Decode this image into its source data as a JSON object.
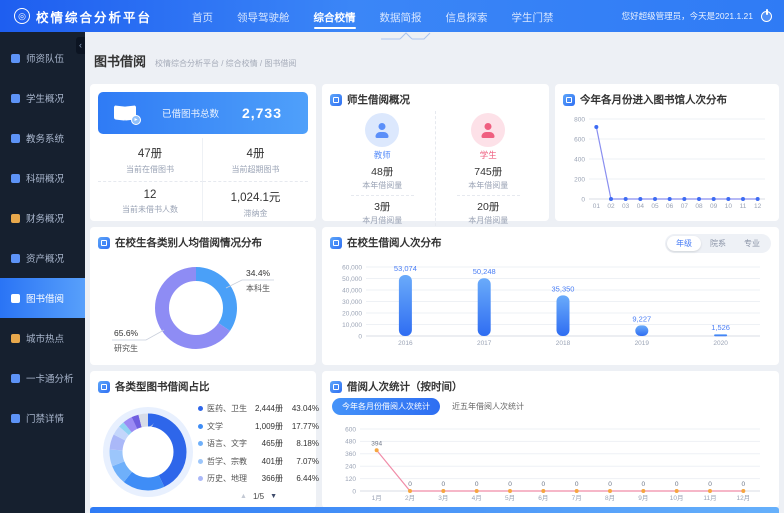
{
  "topbar": {
    "logo_text": "校情综合分析平台",
    "nav": [
      {
        "label": "首页"
      },
      {
        "label": "领导驾驶舱"
      },
      {
        "label": "综合校情"
      },
      {
        "label": "数据简报"
      },
      {
        "label": "信息探索"
      },
      {
        "label": "学生门禁"
      }
    ],
    "active_nav": "综合校情",
    "greeting": "您好超级管理员，今天是2021.1.21"
  },
  "sidebar": {
    "active": "图书借阅",
    "items": [
      {
        "label": "师资队伍"
      },
      {
        "label": "学生概况"
      },
      {
        "label": "教务系统"
      },
      {
        "label": "科研概况"
      },
      {
        "label": "财务概况"
      },
      {
        "label": "资产概况"
      },
      {
        "label": "图书借阅"
      },
      {
        "label": "城市热点"
      },
      {
        "label": "一卡通分析"
      },
      {
        "label": "门禁详情"
      }
    ]
  },
  "breadcrumb": {
    "title": "图书借阅",
    "path": "校情综合分析平台 / 综合校情 / 图书借阅"
  },
  "cards": {
    "borrow_summary": {
      "banner": {
        "label": "已借图书总数",
        "value": "2,733"
      },
      "stats": [
        {
          "value": "47册",
          "label": "当前在借图书"
        },
        {
          "value": "4册",
          "label": "当前超期图书"
        },
        {
          "value": "12",
          "label": "当前未借书人数"
        },
        {
          "value": "1,024.1元",
          "label": "滞纳金"
        }
      ]
    },
    "teacher_student": {
      "title": "师生借阅概况",
      "teacher": {
        "name": "教师",
        "year_value": "48册",
        "year_label": "本年借阅量",
        "month_value": "3册",
        "month_label": "本月借阅量"
      },
      "student": {
        "name": "学生",
        "year_value": "745册",
        "year_label": "本年借阅量",
        "month_value": "20册",
        "month_label": "本月借阅量"
      }
    },
    "monthly_entries": {
      "title": "今年各月份进入图书馆人次分布"
    },
    "per_capita": {
      "title": "在校生各类别人均借阅情况分布"
    },
    "yearly_borrow": {
      "title": "在校生借阅人次分布",
      "tabs": [
        {
          "label": "年级"
        },
        {
          "label": "院系"
        },
        {
          "label": "专业"
        }
      ],
      "active_tab": "年级"
    },
    "book_types": {
      "title": "各类型图书借阅占比",
      "pagination": "1/5",
      "legend": [
        {
          "name": "医药、卫生",
          "count": "2,444册",
          "pct": "43.04%"
        },
        {
          "name": "文学",
          "count": "1,009册",
          "pct": "17.77%"
        },
        {
          "name": "语言、文字",
          "count": "465册",
          "pct": "8.18%"
        },
        {
          "name": "哲学、宗教",
          "count": "401册",
          "pct": "7.07%"
        },
        {
          "name": "历史、地理",
          "count": "366册",
          "pct": "6.44%"
        }
      ]
    },
    "time_stats": {
      "title": "借阅人次统计（按时间）",
      "buttons": [
        {
          "label": "今年各月份借阅人次统计",
          "active": true
        },
        {
          "label": "近五年借阅人次统计",
          "active": false
        }
      ]
    }
  },
  "chart_data": [
    {
      "id": "monthly_entries",
      "type": "line",
      "title": "今年各月份进入图书馆人次分布",
      "x": [
        "01",
        "02",
        "03",
        "04",
        "05",
        "06",
        "07",
        "08",
        "09",
        "10",
        "11",
        "12"
      ],
      "values": [
        720,
        0,
        0,
        0,
        0,
        0,
        0,
        0,
        0,
        0,
        0,
        0
      ],
      "ylim": [
        0,
        800
      ],
      "ystep": 200,
      "grid": true,
      "color": "#8a8ff0",
      "point_color": "#3d6bf3"
    },
    {
      "id": "yearly_borrow",
      "type": "bar",
      "title": "在校生借阅人次分布",
      "categories": [
        "2016",
        "2017",
        "2018",
        "2019",
        "2020"
      ],
      "values": [
        53074,
        50248,
        35350,
        9227,
        1526
      ],
      "ylim": [
        0,
        60000
      ],
      "ystep": 10000,
      "grid": true,
      "bar_color_top": "#6aabfa",
      "bar_color_bottom": "#2f6df2",
      "label_color": "#4a7ef5",
      "tabs": [
        "年级",
        "院系",
        "专业"
      ],
      "active_tab": "年级"
    },
    {
      "id": "per_capita",
      "type": "pie",
      "title": "在校生各类别人均借阅情况分布",
      "slices": [
        {
          "label": "本科生",
          "pct": 34.4,
          "color": "#4aa0f8"
        },
        {
          "label": "研究生",
          "pct": 65.6,
          "color": "#8e8cf4"
        }
      ]
    },
    {
      "id": "book_types",
      "type": "pie",
      "title": "各类型图书借阅占比",
      "slices": [
        {
          "label": "医药、卫生",
          "count": 2444,
          "pct": 43.04,
          "color": "#2e66ea"
        },
        {
          "label": "文学",
          "count": 1009,
          "pct": 17.77,
          "color": "#3f8df6"
        },
        {
          "label": "语言、文字",
          "count": 465,
          "pct": 8.18,
          "color": "#6fb0fa"
        },
        {
          "label": "哲学、宗教",
          "count": 401,
          "pct": 7.07,
          "color": "#9cc6fb"
        },
        {
          "label": "历史、地理",
          "count": 366,
          "pct": 6.44,
          "color": "#aab8f8"
        }
      ],
      "other_slices": [
        {
          "pct": 4,
          "color": "#c3d6fb"
        },
        {
          "pct": 2.5,
          "color": "#8fd2f3"
        },
        {
          "pct": 4,
          "color": "#9b8bf4"
        },
        {
          "pct": 3,
          "color": "#6f5fe0"
        },
        {
          "pct": 4,
          "color": "#d7dce8"
        }
      ],
      "pagination": "1/5"
    },
    {
      "id": "time_stats",
      "type": "line",
      "title": "今年各月份借阅人次统计",
      "x": [
        "1月",
        "2月",
        "3月",
        "4月",
        "5月",
        "6月",
        "7月",
        "8月",
        "9月",
        "10月",
        "11月",
        "12月"
      ],
      "values": [
        394,
        0,
        0,
        0,
        0,
        0,
        0,
        0,
        0,
        0,
        0,
        0
      ],
      "ylim": [
        0,
        600
      ],
      "ystep": 120,
      "grid": true,
      "show_point_labels": true,
      "color": "#f08ca8",
      "point_color": "#f6a640"
    }
  ]
}
